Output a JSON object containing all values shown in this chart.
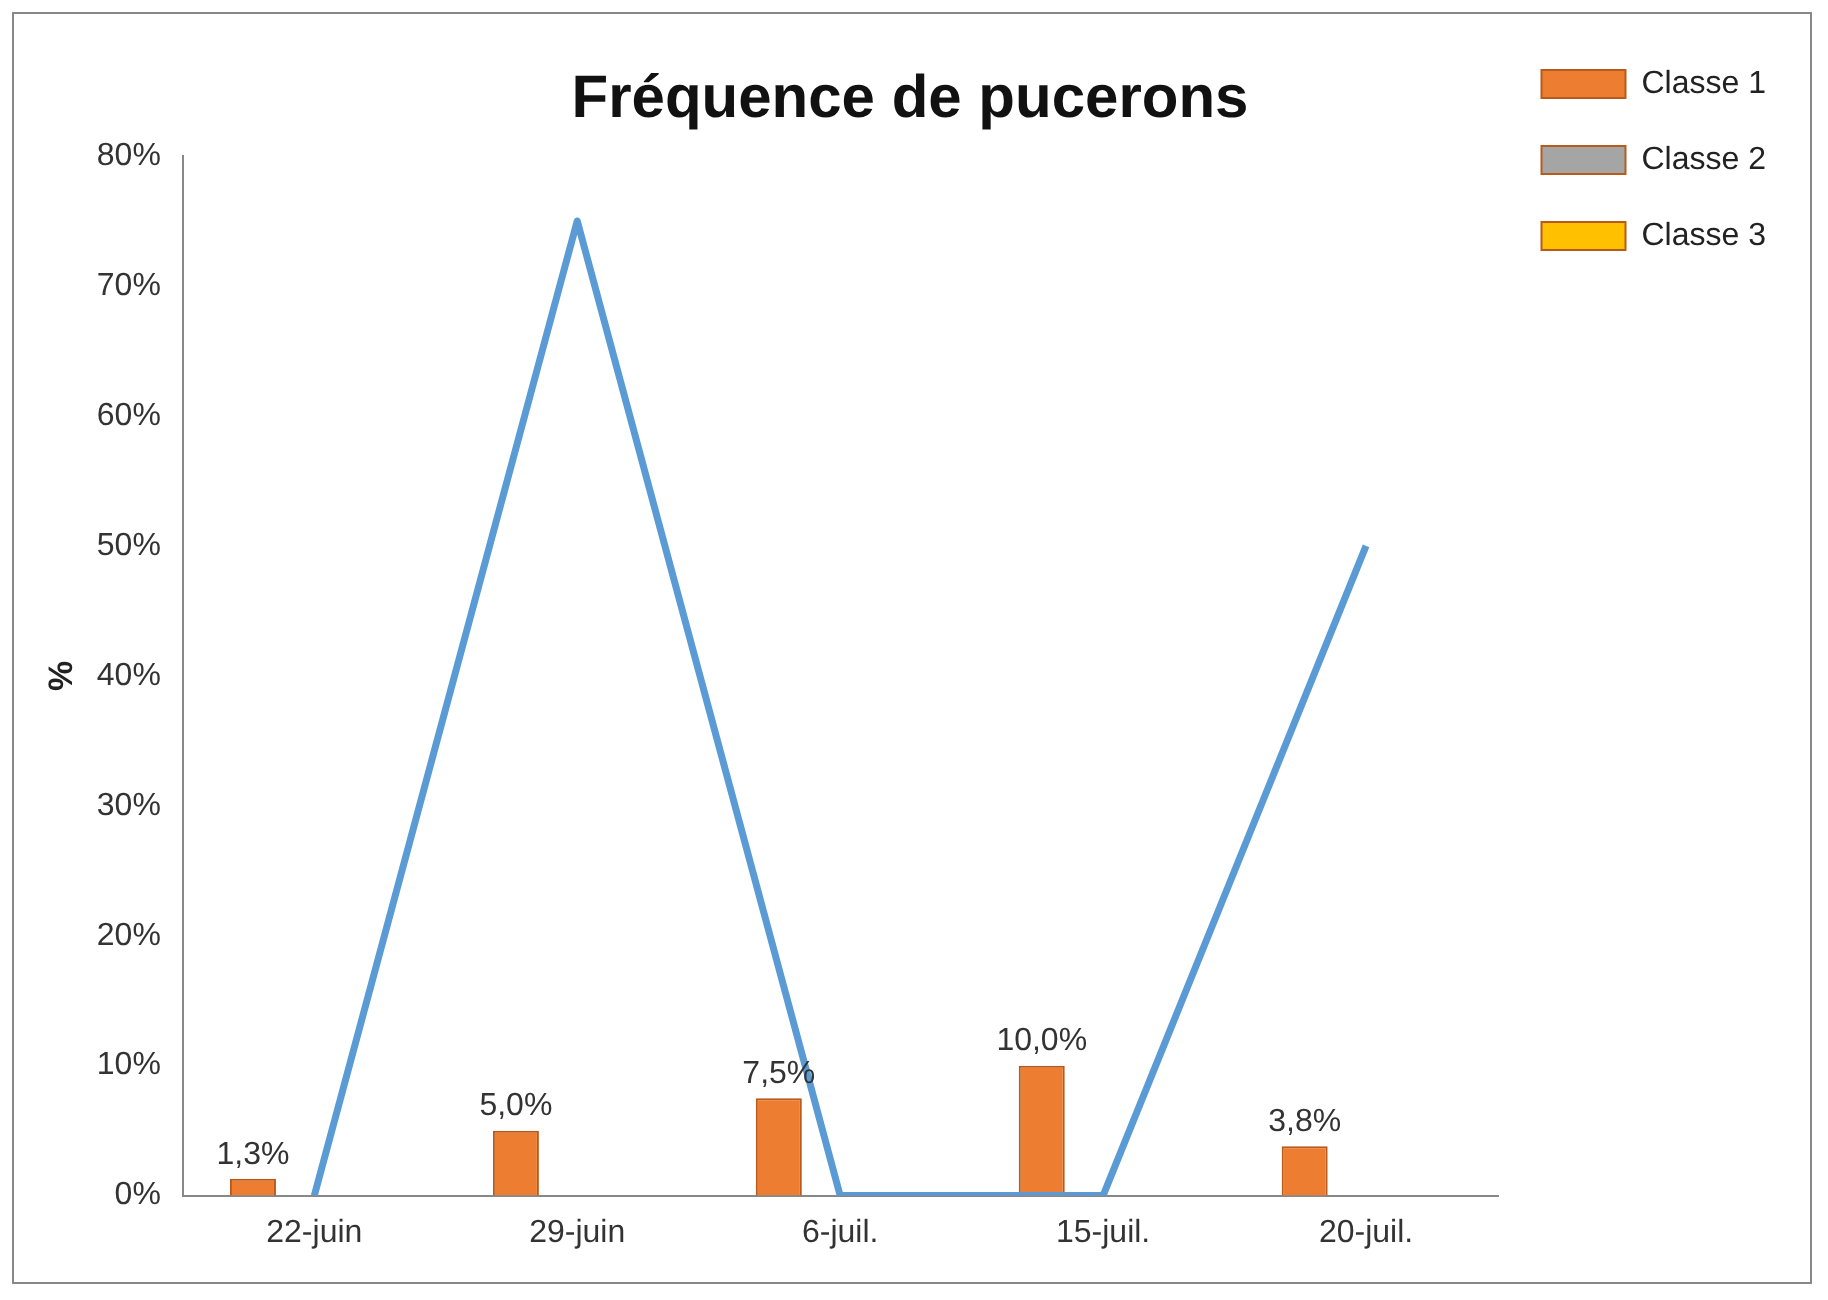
{
  "chart_data": {
    "type": "bar",
    "title": "Fréquence de pucerons",
    "ylabel": "%",
    "categories": [
      "22-juin",
      "29-juin",
      "6-juil.",
      "15-juil.",
      "20-juil."
    ],
    "series": [
      {
        "name": "Classe 1",
        "color": "#ed7d31",
        "values": [
          1.3,
          5.0,
          7.5,
          10.0,
          3.8
        ],
        "value_labels": [
          "1,3%",
          "5,0%",
          "7,5%",
          "10,0%",
          "3,8%"
        ]
      },
      {
        "name": "Classe 2",
        "color": "#a5a5a5",
        "values": [
          0,
          0,
          0,
          0,
          0
        ]
      },
      {
        "name": "Classe 3",
        "color": "#ffc000",
        "values": [
          0,
          0,
          0,
          0,
          0
        ]
      },
      {
        "type": "line",
        "color": "#5b9bd5",
        "values": [
          0,
          75,
          0,
          0,
          50
        ]
      }
    ],
    "ylim": [
      0,
      80
    ],
    "yticks": [
      {
        "value": 0,
        "label": "0%"
      },
      {
        "value": 10,
        "label": "10%"
      },
      {
        "value": 20,
        "label": "20%"
      },
      {
        "value": 30,
        "label": "30%"
      },
      {
        "value": 40,
        "label": "40%"
      },
      {
        "value": 50,
        "label": "50%"
      },
      {
        "value": 60,
        "label": "60%"
      },
      {
        "value": 70,
        "label": "70%"
      },
      {
        "value": 80,
        "label": "80%"
      }
    ],
    "grid": false,
    "legend": "right",
    "marker": "none"
  }
}
